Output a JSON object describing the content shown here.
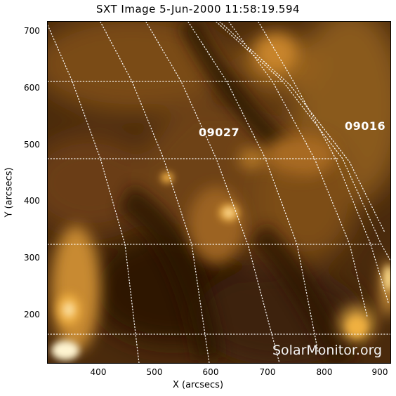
{
  "title": "SXT Image   5-Jun-2000 11:58:19.594",
  "axes": {
    "x_label": "X (arcsecs)",
    "y_label": "Y (arcsecs)",
    "x_ticks": [
      "400",
      "500",
      "600",
      "700",
      "800",
      "900"
    ],
    "y_ticks": [
      "700",
      "600",
      "500",
      "400",
      "300",
      "200"
    ]
  },
  "regions": [
    "09027",
    "09016"
  ],
  "watermark": "SolarMonitor.org",
  "colors": {
    "dark": "#3a1f08",
    "mid": "#7a4a14",
    "bright": "#f0b040",
    "hot": "#fff2c0",
    "grid": "#ffffff"
  }
}
